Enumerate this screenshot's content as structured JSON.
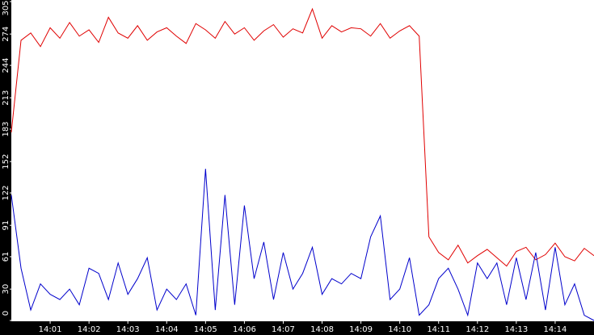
{
  "chart_data": {
    "type": "line",
    "x": [
      840,
      840.25,
      840.5,
      840.75,
      841,
      841.25,
      841.5,
      841.75,
      842,
      842.25,
      842.5,
      842.75,
      843,
      843.25,
      843.5,
      843.75,
      844,
      844.25,
      844.5,
      844.75,
      845,
      845.25,
      845.5,
      845.75,
      846,
      846.25,
      846.5,
      846.75,
      847,
      847.25,
      847.5,
      847.75,
      848,
      848.25,
      848.5,
      848.75,
      849,
      849.25,
      849.5,
      849.75,
      850,
      850.25,
      850.5,
      850.75,
      851,
      851.25,
      851.5,
      851.75,
      852,
      852.25,
      852.5,
      852.75,
      853,
      853.25,
      853.5,
      853.75,
      854,
      854.25,
      854.5,
      854.75,
      855
    ],
    "series": [
      {
        "color": "#e00000",
        "values": [
          180,
          268,
          275,
          262,
          280,
          270,
          285,
          272,
          278,
          266,
          290,
          275,
          270,
          282,
          268,
          276,
          280,
          272,
          265,
          284,
          278,
          270,
          286,
          274,
          280,
          268,
          277,
          283,
          271,
          279,
          275,
          298,
          270,
          282,
          276,
          280,
          279,
          272,
          284,
          270,
          277,
          282,
          272,
          80,
          65,
          58,
          72,
          55,
          62,
          68,
          60,
          52,
          66,
          70,
          58,
          63,
          74,
          61,
          57,
          69,
          62
        ]
      },
      {
        "color": "#0000cc",
        "values": [
          120,
          50,
          10,
          35,
          25,
          20,
          30,
          15,
          50,
          45,
          20,
          55,
          25,
          40,
          60,
          10,
          30,
          20,
          35,
          5,
          145,
          10,
          120,
          15,
          110,
          40,
          75,
          20,
          65,
          30,
          45,
          70,
          25,
          40,
          35,
          45,
          40,
          80,
          100,
          20,
          30,
          60,
          5,
          15,
          40,
          50,
          30,
          5,
          55,
          40,
          55,
          15,
          60,
          20,
          65,
          10,
          70,
          15,
          35,
          5,
          0
        ]
      }
    ],
    "xlim": [
      840,
      855
    ],
    "xticks": [
      {
        "value": 841,
        "label": "14:01"
      },
      {
        "value": 842,
        "label": "14:02"
      },
      {
        "value": 843,
        "label": "14:03"
      },
      {
        "value": 844,
        "label": "14:04"
      },
      {
        "value": 845,
        "label": "14:05"
      },
      {
        "value": 846,
        "label": "14:06"
      },
      {
        "value": 847,
        "label": "14:07"
      },
      {
        "value": 848,
        "label": "14:08"
      },
      {
        "value": 849,
        "label": "14:09"
      },
      {
        "value": 850,
        "label": "14:10"
      },
      {
        "value": 851,
        "label": "14:11"
      },
      {
        "value": 852,
        "label": "14:12"
      },
      {
        "value": 853,
        "label": "14:13"
      },
      {
        "value": 854,
        "label": "14:14"
      }
    ],
    "ylim": [
      0,
      305
    ],
    "yticks": [
      0,
      30,
      61,
      91,
      122,
      152,
      183,
      213,
      244,
      274,
      305
    ]
  }
}
